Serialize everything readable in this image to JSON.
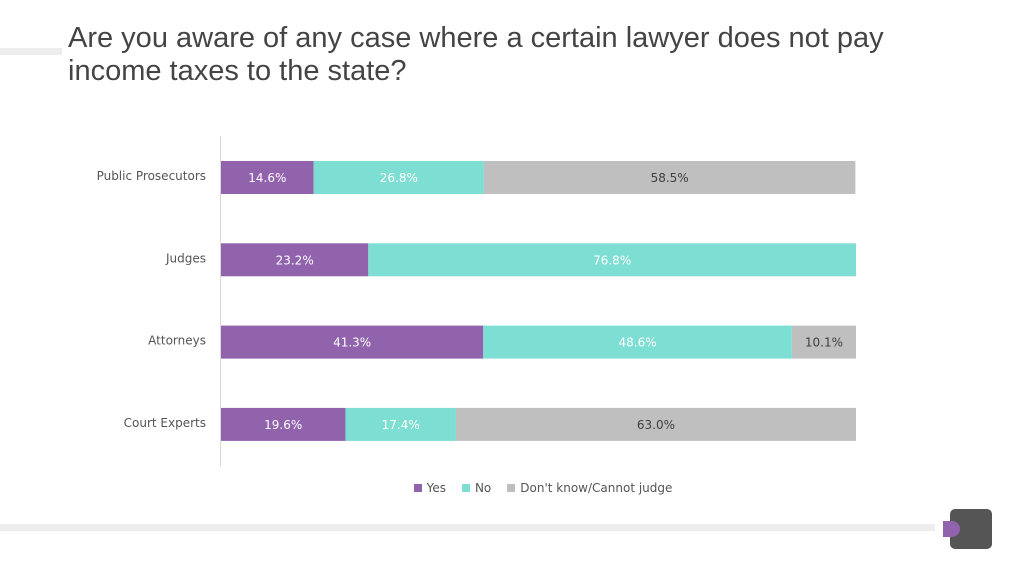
{
  "title": "Are you aware of any case where a certain lawyer does not pay income taxes to the state?",
  "chart_data": {
    "type": "bar",
    "orientation": "horizontal",
    "stacked": true,
    "percent_stacked": true,
    "categories": [
      "Public Prosecutors",
      "Judges",
      "Attorneys",
      "Court Experts"
    ],
    "series": [
      {
        "name": "Yes",
        "color": "#9263ad",
        "values": [
          14.6,
          23.2,
          41.3,
          19.6
        ],
        "labels": [
          "14.6%",
          "23.2%",
          "41.3%",
          "19.6%"
        ]
      },
      {
        "name": "No",
        "color": "#7ddfd3",
        "values": [
          26.8,
          76.8,
          48.6,
          17.4
        ],
        "labels": [
          "26.8%",
          "76.8%",
          "48.6%",
          "17.4%"
        ]
      },
      {
        "name": "Don't know/Cannot judge",
        "color": "#bfbfbf",
        "values": [
          58.5,
          0,
          10.1,
          63.0
        ],
        "labels": [
          "58.5%",
          "",
          "10.1%",
          "63.0%"
        ]
      }
    ],
    "xlim": [
      0,
      100
    ],
    "grid": false,
    "legend_position": "bottom"
  },
  "colors": {
    "yes_label_text": "#ffffff",
    "no_label_text": "#ffffff",
    "dk_label_text": "#404040",
    "logo_dark": "#555555",
    "logo_accent": "#9263ad"
  },
  "logo": {
    "icon": "logo-d-icon"
  }
}
